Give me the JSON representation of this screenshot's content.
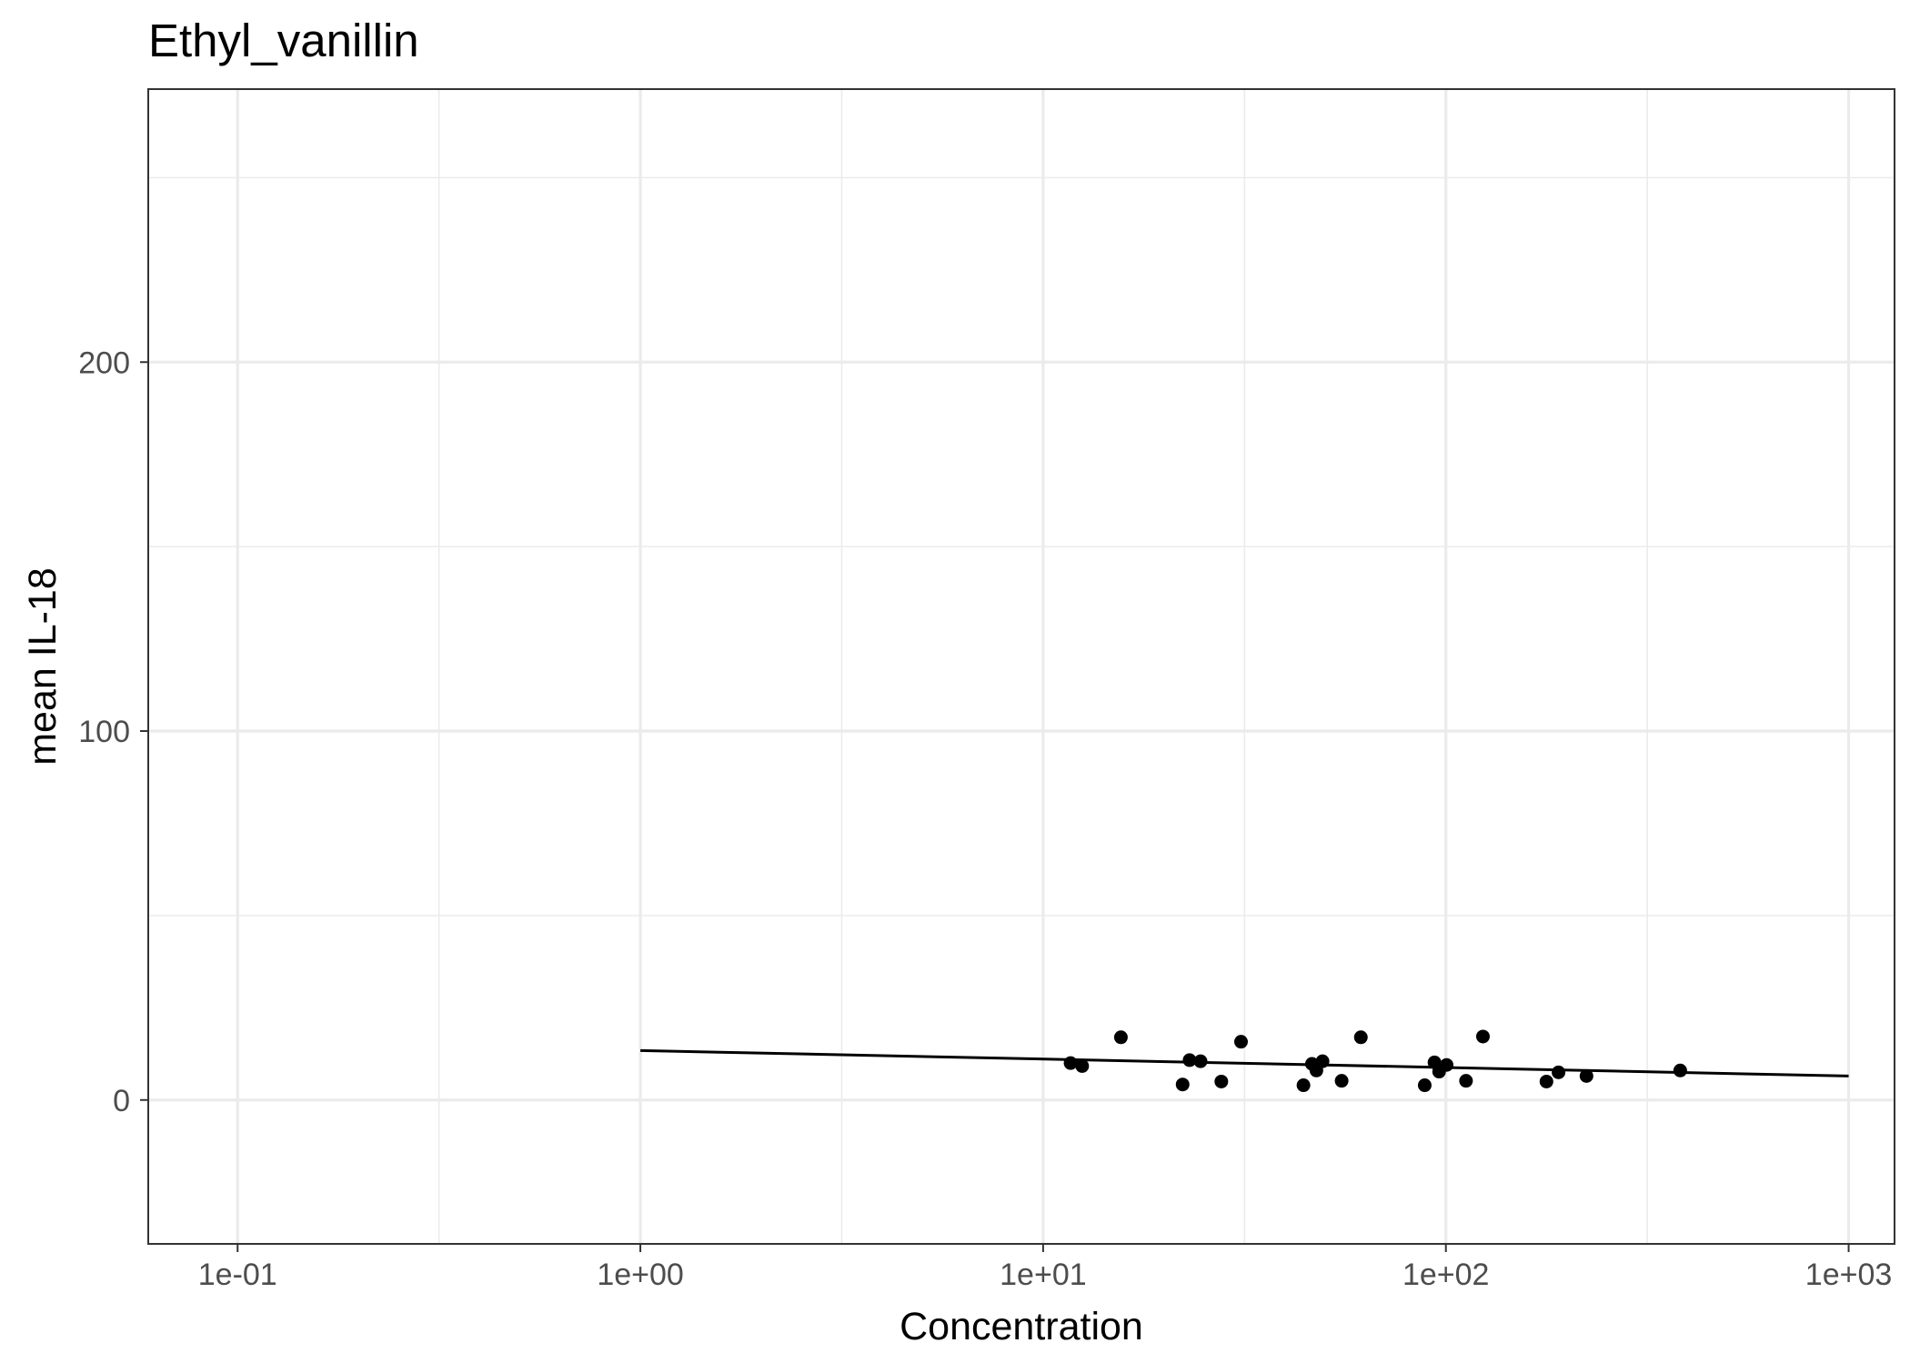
{
  "chart_data": {
    "type": "scatter",
    "title": "Ethyl_vanillin",
    "xlabel": "Concentration",
    "ylabel": "mean IL-18",
    "x_scale": "log10",
    "xlim": [
      0.06,
      1300
    ],
    "ylim": [
      -39,
      274
    ],
    "x_ticks": [
      0.1,
      1,
      10,
      100,
      1000
    ],
    "x_tick_labels": [
      "1e-01",
      "1e+00",
      "1e+01",
      "1e+02",
      "1e+03"
    ],
    "y_ticks": [
      0,
      100,
      200
    ],
    "y_tick_labels": [
      "0",
      "100",
      "200"
    ],
    "grid": true,
    "points": [
      {
        "x": 11.7,
        "y": 10.0
      },
      {
        "x": 12.5,
        "y": 9.2
      },
      {
        "x": 15.6,
        "y": 17.0
      },
      {
        "x": 22.2,
        "y": 4.2
      },
      {
        "x": 23.1,
        "y": 10.8
      },
      {
        "x": 24.6,
        "y": 10.5
      },
      {
        "x": 27.7,
        "y": 5.0
      },
      {
        "x": 31.0,
        "y": 15.8
      },
      {
        "x": 44.3,
        "y": 4.0
      },
      {
        "x": 46.5,
        "y": 9.8
      },
      {
        "x": 47.7,
        "y": 8.0
      },
      {
        "x": 49.4,
        "y": 10.5
      },
      {
        "x": 55.1,
        "y": 5.2
      },
      {
        "x": 61.5,
        "y": 17.0
      },
      {
        "x": 88.6,
        "y": 4.0
      },
      {
        "x": 93.7,
        "y": 10.2
      },
      {
        "x": 96.2,
        "y": 7.7
      },
      {
        "x": 100.4,
        "y": 9.5
      },
      {
        "x": 112.2,
        "y": 5.2
      },
      {
        "x": 123.6,
        "y": 17.2
      },
      {
        "x": 177.7,
        "y": 5.0
      },
      {
        "x": 190.4,
        "y": 7.5
      },
      {
        "x": 223.4,
        "y": 6.5
      },
      {
        "x": 381.8,
        "y": 8.0
      }
    ],
    "fit_line": [
      {
        "x": 1,
        "y": 13.4
      },
      {
        "x": 1000,
        "y": 6.5
      }
    ],
    "colors": {
      "points": "#000000",
      "line": "#000000",
      "grid": "#ebebeb",
      "panel_border": "#333333",
      "tick_label": "#4d4d4d"
    }
  }
}
